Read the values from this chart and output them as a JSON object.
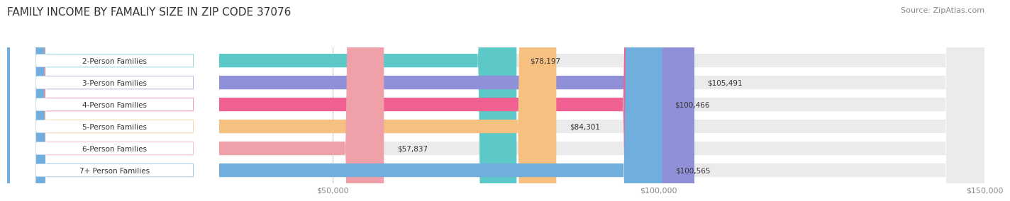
{
  "title": "FAMILY INCOME BY FAMALIY SIZE IN ZIP CODE 37076",
  "source": "Source: ZipAtlas.com",
  "categories": [
    "2-Person Families",
    "3-Person Families",
    "4-Person Families",
    "5-Person Families",
    "6-Person Families",
    "7+ Person Families"
  ],
  "values": [
    78197,
    105491,
    100466,
    84301,
    57837,
    100565
  ],
  "bar_colors": [
    "#5CC8C8",
    "#9090D8",
    "#F06090",
    "#F5C080",
    "#F0A0A8",
    "#70AEDD"
  ],
  "bar_bg_color": "#EBEBEB",
  "xlim": [
    0,
    150000
  ],
  "xticks": [
    0,
    50000,
    100000,
    150000
  ],
  "xtick_labels": [
    "$50,000",
    "$100,000",
    "$150,000"
  ],
  "fig_bg_color": "#FFFFFF",
  "bar_height": 0.62,
  "title_fontsize": 11,
  "source_fontsize": 8,
  "label_fontsize": 7.5,
  "value_fontsize": 7.5,
  "tick_fontsize": 8
}
